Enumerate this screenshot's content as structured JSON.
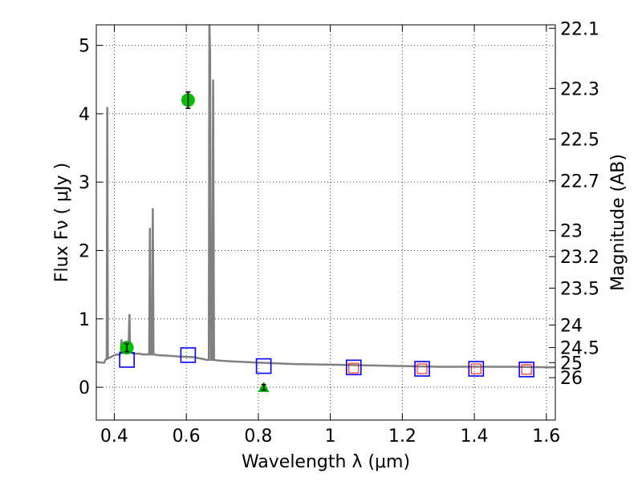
{
  "chart_data": {
    "type": "line",
    "xlabel": "Wavelength  λ (μm)",
    "ylabel": "Flux  Fν  ( μJy )",
    "ylabel_right": "Magnitude (AB)",
    "xlim": [
      0.35,
      1.625
    ],
    "ylim": [
      -0.48,
      5.3
    ],
    "x_ticks": [
      0.4,
      0.6,
      0.8,
      1.0,
      1.2,
      1.4,
      1.6
    ],
    "x_tick_labels": [
      "0.4",
      "0.6",
      "0.8",
      "1",
      "1.2",
      "1.4",
      "1.6"
    ],
    "y_ticks": [
      0,
      1,
      2,
      3,
      4,
      5
    ],
    "y_tick_labels": [
      "0",
      "1",
      "2",
      "3",
      "4",
      "5"
    ],
    "right_axis_ticks": [
      {
        "label": "22.1",
        "flux": 5.25
      },
      {
        "label": "22.3",
        "flux": 4.37
      },
      {
        "label": "22.5",
        "flux": 3.63
      },
      {
        "label": "22.7",
        "flux": 3.02
      },
      {
        "label": "23",
        "flux": 2.29
      },
      {
        "label": "23.2",
        "flux": 1.91
      },
      {
        "label": "23.5",
        "flux": 1.45
      },
      {
        "label": "24",
        "flux": 0.91
      },
      {
        "label": "24.5",
        "flux": 0.58
      },
      {
        "label": "25",
        "flux": 0.36
      },
      {
        "label": "26",
        "flux": 0.14
      }
    ],
    "grid": true,
    "colors": {
      "spectrum": "#808080",
      "observed": "#00c000",
      "model_boxes": "#0000ff",
      "inner_boxes": "#ff0000",
      "errorbar": "#000000"
    },
    "series": [
      {
        "kind": "spectrum",
        "points": [
          [
            0.35,
            0.37
          ],
          [
            0.365,
            0.36
          ],
          [
            0.372,
            0.36
          ],
          [
            0.375,
            0.4
          ],
          [
            0.379,
            0.42
          ],
          [
            0.3805,
            4.1
          ],
          [
            0.382,
            0.42
          ],
          [
            0.39,
            0.44
          ],
          [
            0.4,
            0.47
          ],
          [
            0.41,
            0.48
          ],
          [
            0.415,
            0.47
          ],
          [
            0.418,
            0.52
          ],
          [
            0.42,
            0.7
          ],
          [
            0.422,
            0.5
          ],
          [
            0.43,
            0.5
          ],
          [
            0.437,
            0.52
          ],
          [
            0.44,
            0.68
          ],
          [
            0.442,
            1.07
          ],
          [
            0.444,
            0.52
          ],
          [
            0.45,
            0.5
          ],
          [
            0.46,
            0.49
          ],
          [
            0.47,
            0.49
          ],
          [
            0.48,
            0.48
          ],
          [
            0.49,
            0.48
          ],
          [
            0.497,
            0.48
          ],
          [
            0.499,
            2.33
          ],
          [
            0.501,
            0.48
          ],
          [
            0.505,
            0.48
          ],
          [
            0.507,
            2.62
          ],
          [
            0.509,
            0.48
          ],
          [
            0.52,
            0.47
          ],
          [
            0.55,
            0.46
          ],
          [
            0.58,
            0.45
          ],
          [
            0.62,
            0.44
          ],
          [
            0.65,
            0.41
          ],
          [
            0.655,
            0.4
          ],
          [
            0.66,
            0.4
          ],
          [
            0.6625,
            0.4
          ],
          [
            0.664,
            5.35
          ],
          [
            0.666,
            4.9
          ],
          [
            0.6685,
            0.4
          ],
          [
            0.672,
            0.4
          ],
          [
            0.6745,
            4.5
          ],
          [
            0.677,
            0.4
          ],
          [
            0.69,
            0.39
          ],
          [
            0.72,
            0.38
          ],
          [
            0.76,
            0.37
          ],
          [
            0.8,
            0.36
          ],
          [
            0.85,
            0.35
          ],
          [
            0.9,
            0.34
          ],
          [
            1.0,
            0.33
          ],
          [
            1.1,
            0.32
          ],
          [
            1.2,
            0.31
          ],
          [
            1.3,
            0.3
          ],
          [
            1.4,
            0.3
          ],
          [
            1.5,
            0.3
          ],
          [
            1.625,
            0.29
          ]
        ]
      },
      {
        "kind": "observed",
        "points": [
          {
            "x": 0.435,
            "y": 0.58,
            "err": 0.06
          },
          {
            "x": 0.605,
            "y": 4.2,
            "err": 0.12
          },
          {
            "x": 0.815,
            "y": 0.0,
            "err": 0.04,
            "marker": "triangle"
          }
        ]
      },
      {
        "kind": "model_boxes",
        "points": [
          {
            "x": 0.435,
            "y": 0.4
          },
          {
            "x": 0.605,
            "y": 0.47
          },
          {
            "x": 0.815,
            "y": 0.31
          },
          {
            "x": 1.065,
            "y": 0.29
          },
          {
            "x": 1.255,
            "y": 0.27
          },
          {
            "x": 1.405,
            "y": 0.27
          },
          {
            "x": 1.545,
            "y": 0.26
          }
        ]
      },
      {
        "kind": "inner_boxes",
        "points": [
          {
            "x": 1.065,
            "y": 0.28
          },
          {
            "x": 1.255,
            "y": 0.27
          },
          {
            "x": 1.405,
            "y": 0.27
          },
          {
            "x": 1.545,
            "y": 0.26
          }
        ]
      }
    ]
  }
}
